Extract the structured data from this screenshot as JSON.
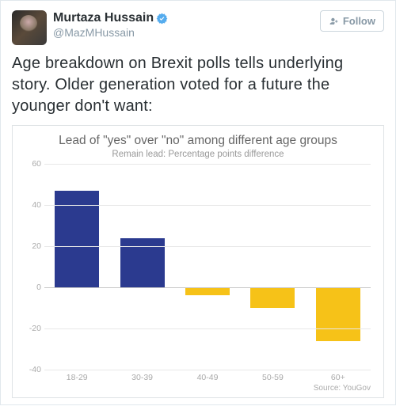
{
  "tweet": {
    "display_name": "Murtaza Hussain",
    "handle": "@MazMHussain",
    "follow_label": "Follow",
    "text": "Age breakdown on Brexit polls tells underlying story. Older generation voted for a future the younger don't want:"
  },
  "chart": {
    "type": "bar",
    "title": "Lead of \"yes\" over \"no\" among different age groups",
    "subtitle": "Remain lead: Percentage points difference",
    "source": "Source: YouGov",
    "categories": [
      "18-29",
      "30-39",
      "40-49",
      "50-59",
      "60+"
    ],
    "values": [
      47,
      24,
      -4,
      -10,
      -26
    ],
    "bar_colors": [
      "#2b3a8f",
      "#2b3a8f",
      "#f6c218",
      "#f6c218",
      "#f6c218"
    ],
    "ylim": [
      -40,
      60
    ],
    "ytick_step": 20,
    "background_color": "#ffffff",
    "grid_color": "#e8e8e8",
    "zero_line_color": "#c7c7c7",
    "axis_label_color": "#aaaaaa",
    "title_color": "#666666",
    "subtitle_color": "#999999",
    "title_fontsize": 15.5,
    "subtitle_fontsize": 11.5,
    "axis_fontsize": 10.5,
    "bar_width": 0.68
  },
  "colors": {
    "verified_badge": "#55acee",
    "text_primary": "#292f33",
    "text_muted": "#8899a6",
    "card_border": "#e1e8ed"
  }
}
